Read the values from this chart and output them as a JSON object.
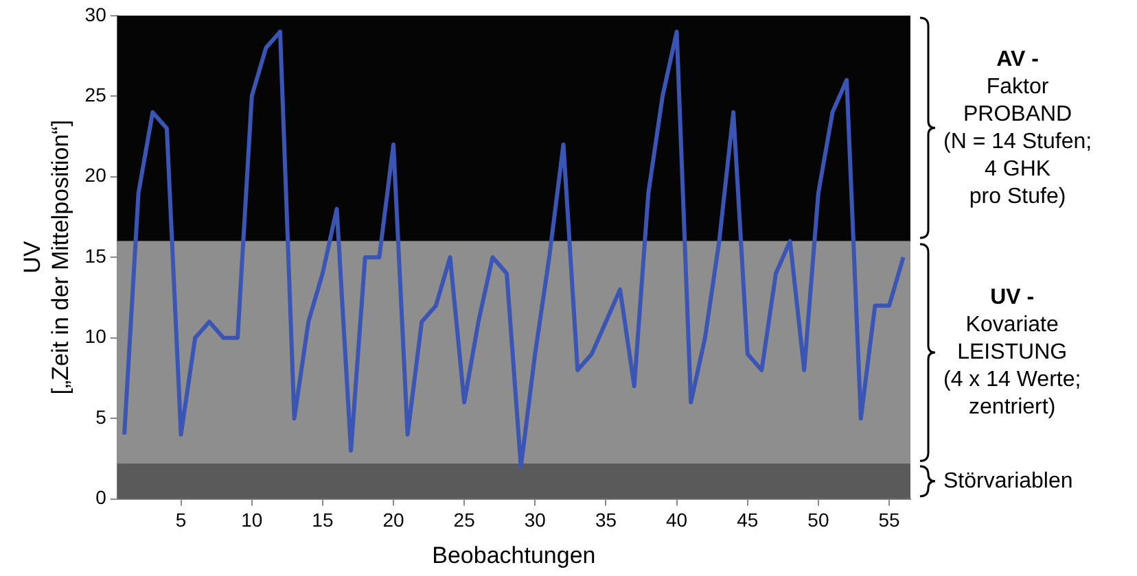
{
  "chart_data": {
    "type": "line",
    "xlabel": "Beobachtungen",
    "ylabel": "UV\n[„Zeit in der Mittelposition“]",
    "x": [
      1,
      2,
      3,
      4,
      5,
      6,
      7,
      8,
      9,
      10,
      11,
      12,
      13,
      14,
      15,
      16,
      17,
      18,
      19,
      20,
      21,
      22,
      23,
      24,
      25,
      26,
      27,
      28,
      29,
      30,
      31,
      32,
      33,
      34,
      35,
      36,
      37,
      38,
      39,
      40,
      41,
      42,
      43,
      44,
      45,
      46,
      47,
      48,
      49,
      50,
      51,
      52,
      53,
      54,
      55,
      56
    ],
    "series": [
      {
        "color": "#3a55b4",
        "values": [
          4,
          19,
          24,
          23,
          4,
          10,
          11,
          10,
          10,
          25,
          28,
          29,
          5,
          11,
          14,
          18,
          3,
          15,
          15,
          22,
          4,
          11,
          12,
          15,
          6,
          11,
          15,
          14,
          2,
          9,
          15,
          22,
          8,
          9,
          11,
          13,
          7,
          19,
          25,
          29,
          6,
          10,
          16,
          24,
          9,
          8,
          14,
          16,
          8,
          19,
          24,
          26,
          5,
          12,
          12,
          15
        ]
      }
    ],
    "xlim": [
      0.5,
      56.5
    ],
    "xticks": [
      5,
      10,
      15,
      20,
      25,
      30,
      35,
      40,
      45,
      50,
      55
    ],
    "ylim": [
      0,
      30
    ],
    "yticks": [
      0,
      5,
      10,
      15,
      20,
      25,
      30
    ],
    "bands": [
      {
        "axis": "y",
        "from": 16,
        "to": 30,
        "color": "#050505",
        "label": "AV -\nFaktor\nPROBAND\n(N = 14 Stufen;\n4 GHK\npro Stufe)"
      },
      {
        "axis": "y",
        "from": 2.2,
        "to": 16,
        "color": "#8e8e8e",
        "label": "UV -\nKovariate\nLEISTUNG\n(4 x 14 Werte;\nzentriert)"
      },
      {
        "axis": "y",
        "from": 0,
        "to": 2.2,
        "color": "#5a5a5a",
        "label": "Störvariablen"
      }
    ],
    "grid": false,
    "legend": false,
    "marker": "none",
    "line_style": "solid"
  }
}
